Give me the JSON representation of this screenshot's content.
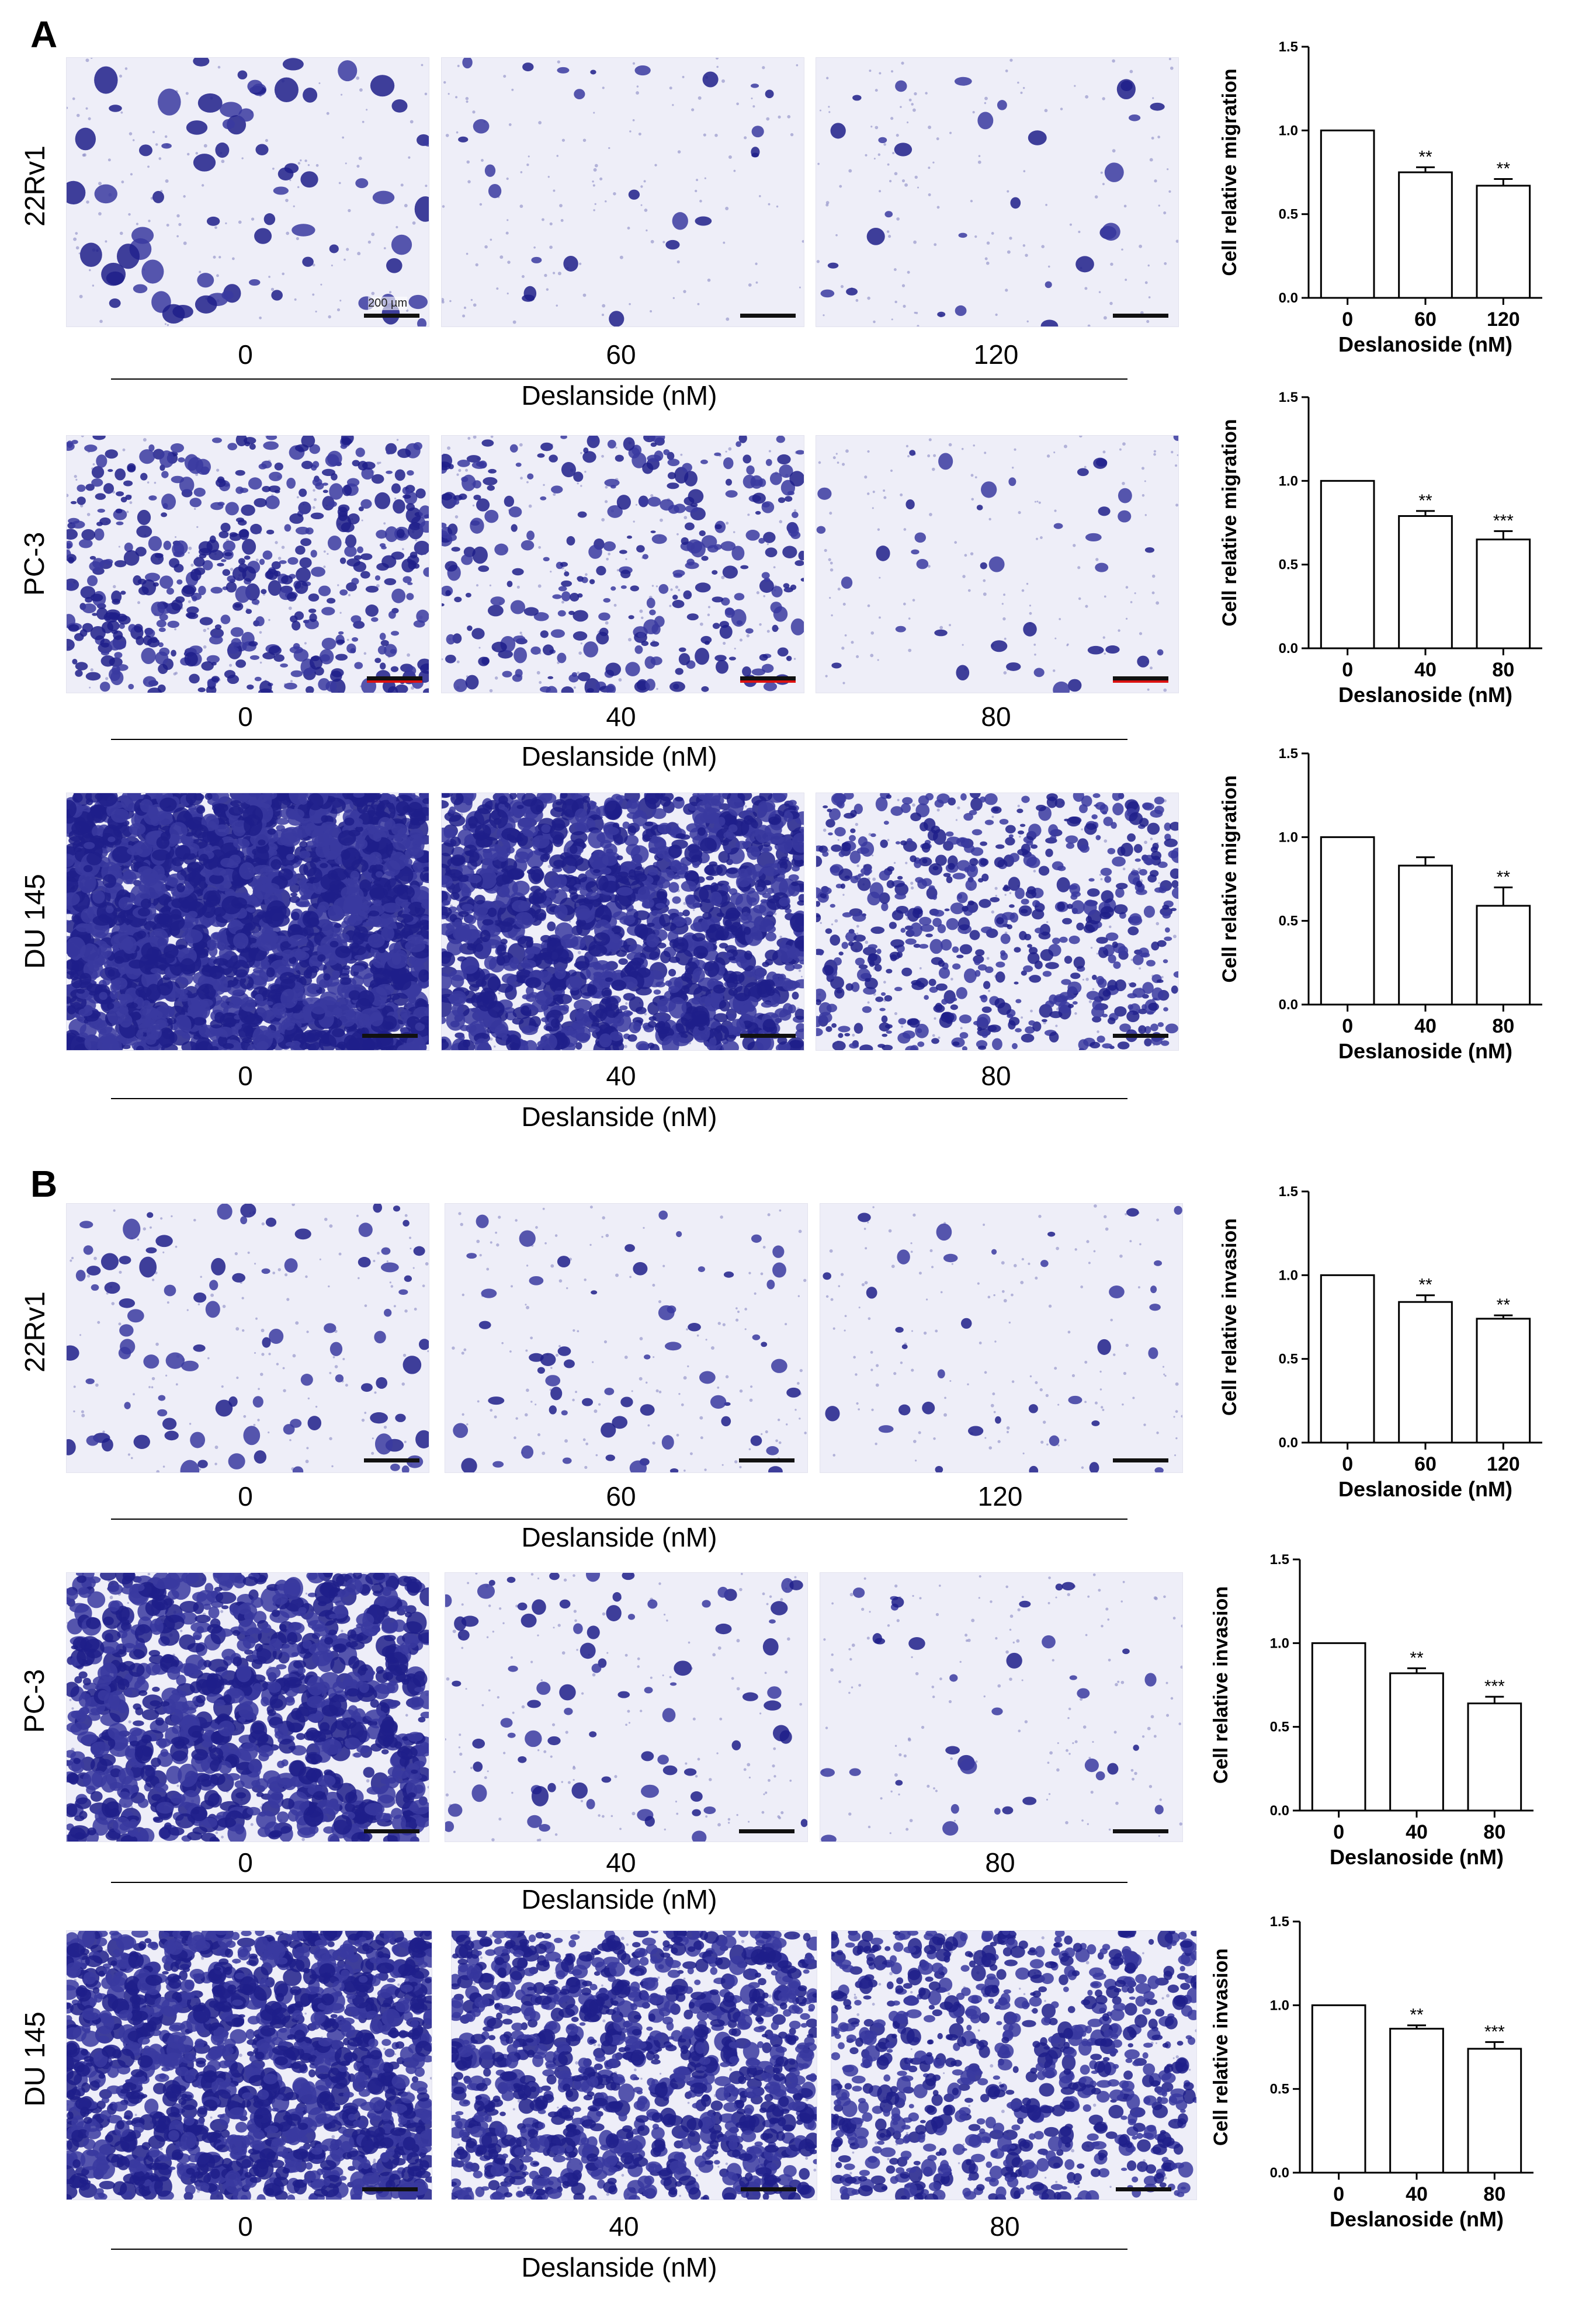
{
  "panels": [
    {
      "letter": "A",
      "rows": [
        {
          "cell_line": "22Rv1",
          "concentrations": [
            "0",
            "60",
            "120"
          ],
          "axis_label": "Deslanside (nM)",
          "scale_label": "200 µm"
        },
        {
          "cell_line": "PC-3",
          "concentrations": [
            "0",
            "40",
            "80"
          ],
          "axis_label": "Deslanside (nM)"
        },
        {
          "cell_line": "DU 145",
          "concentrations": [
            "0",
            "40",
            "80"
          ],
          "axis_label": "Deslanside (nM)"
        }
      ]
    },
    {
      "letter": "B",
      "rows": [
        {
          "cell_line": "22Rv1",
          "concentrations": [
            "0",
            "60",
            "120"
          ],
          "axis_label": "Deslanside (nM)"
        },
        {
          "cell_line": "PC-3",
          "concentrations": [
            "0",
            "40",
            "80"
          ],
          "axis_label": "Deslanside (nM)"
        },
        {
          "cell_line": "DU 145",
          "concentrations": [
            "0",
            "40",
            "80"
          ],
          "axis_label": "Deslanside (nM)"
        }
      ]
    }
  ],
  "colors": {
    "stain": "#3a3aa0",
    "stain_dark": "#1f1f8a",
    "background": "#eeeef8",
    "bar": "#ffffff",
    "axis": "#000000"
  },
  "chart_data": [
    {
      "type": "bar",
      "title": "",
      "categories": [
        "0",
        "60",
        "120"
      ],
      "values": [
        1.0,
        0.75,
        0.67
      ],
      "errors": [
        0,
        0.03,
        0.04
      ],
      "significance": [
        "",
        "**",
        "**"
      ],
      "xlabel": "Deslanoside (nM)",
      "ylabel": "Cell relative migration",
      "ylim": [
        0,
        1.5
      ],
      "yticks": [
        "0.0",
        "0.5",
        "1.0",
        "1.5"
      ]
    },
    {
      "type": "bar",
      "title": "",
      "categories": [
        "0",
        "40",
        "80"
      ],
      "values": [
        1.0,
        0.79,
        0.65
      ],
      "errors": [
        0,
        0.03,
        0.05
      ],
      "significance": [
        "",
        "**",
        "***"
      ],
      "xlabel": "Deslanoside (nM)",
      "ylabel": "Cell relative migration",
      "ylim": [
        0,
        1.5
      ],
      "yticks": [
        "0.0",
        "0.5",
        "1.0",
        "1.5"
      ]
    },
    {
      "type": "bar",
      "title": "",
      "categories": [
        "0",
        "40",
        "80"
      ],
      "values": [
        1.0,
        0.83,
        0.59
      ],
      "errors": [
        0,
        0.05,
        0.11
      ],
      "significance": [
        "",
        "",
        "**"
      ],
      "xlabel": "Deslanoside (nM)",
      "ylabel": "Cell relative migration",
      "ylim": [
        0,
        1.5
      ],
      "yticks": [
        "0.0",
        "0.5",
        "1.0",
        "1.5"
      ]
    },
    {
      "type": "bar",
      "title": "",
      "categories": [
        "0",
        "60",
        "120"
      ],
      "values": [
        1.0,
        0.84,
        0.74
      ],
      "errors": [
        0,
        0.04,
        0.02
      ],
      "significance": [
        "",
        "**",
        "**"
      ],
      "xlabel": "Deslanoside (nM)",
      "ylabel": "Cell relative invasion",
      "ylim": [
        0,
        1.5
      ],
      "yticks": [
        "0.0",
        "0.5",
        "1.0",
        "1.5"
      ]
    },
    {
      "type": "bar",
      "title": "",
      "categories": [
        "0",
        "40",
        "80"
      ],
      "values": [
        1.0,
        0.82,
        0.64
      ],
      "errors": [
        0,
        0.03,
        0.04
      ],
      "significance": [
        "",
        "**",
        "***"
      ],
      "xlabel": "Deslanoside (nM)",
      "ylabel": "Cell relative invasion",
      "ylim": [
        0,
        1.5
      ],
      "yticks": [
        "0.0",
        "0.5",
        "1.0",
        "1.5"
      ]
    },
    {
      "type": "bar",
      "title": "",
      "categories": [
        "0",
        "40",
        "80"
      ],
      "values": [
        1.0,
        0.86,
        0.74
      ],
      "errors": [
        0,
        0.02,
        0.04
      ],
      "significance": [
        "",
        "**",
        "***"
      ],
      "xlabel": "Deslanoside (nM)",
      "ylabel": "Cell relative invasion",
      "ylim": [
        0,
        1.5
      ],
      "yticks": [
        "0.0",
        "0.5",
        "1.0",
        "1.5"
      ]
    }
  ]
}
